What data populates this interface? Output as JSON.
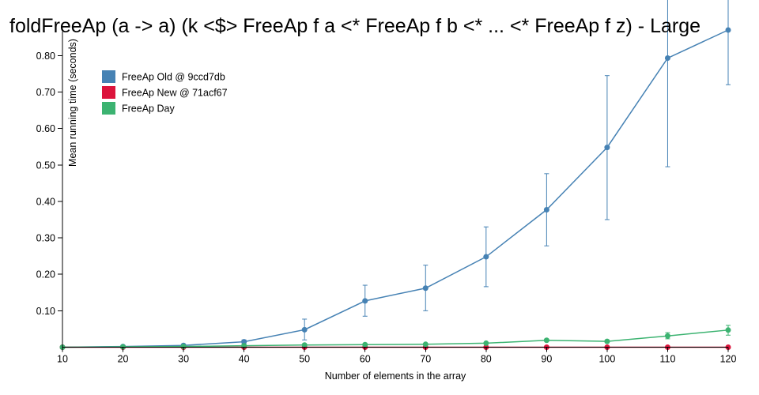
{
  "chart_data": {
    "type": "line",
    "title": "foldFreeAp (a -> a) (k <$> FreeAp f a <* FreeAp f b <* ... <* FreeAp f z) - Large",
    "xlabel": "Number of elements in the array",
    "ylabel": "Mean running time (seconds)",
    "xlim": [
      10,
      120
    ],
    "ylim": [
      0,
      0.85
    ],
    "x_ticks": [
      "10",
      "20",
      "30",
      "40",
      "50",
      "60",
      "70",
      "80",
      "90",
      "100",
      "110",
      "120"
    ],
    "y_ticks": [
      "0.10",
      "0.20",
      "0.30",
      "0.40",
      "0.50",
      "0.60",
      "0.70",
      "0.80"
    ],
    "legend_position": "top-left",
    "grid": false,
    "x": [
      10,
      20,
      30,
      40,
      50,
      60,
      70,
      80,
      90,
      100,
      110,
      120
    ],
    "series": [
      {
        "name": "FreeAp Old @ 9ccd7db",
        "color": "#4682b4",
        "values": [
          0.0,
          0.002,
          0.005,
          0.015,
          0.048,
          0.127,
          0.162,
          0.248,
          0.377,
          0.548,
          0.793,
          0.87
        ],
        "err_low": [
          0.0,
          0.001,
          0.003,
          0.01,
          0.02,
          0.085,
          0.1,
          0.166,
          0.278,
          0.35,
          0.495,
          0.72
        ],
        "err_high": [
          0.0,
          0.003,
          0.008,
          0.02,
          0.077,
          0.17,
          0.225,
          0.33,
          0.476,
          0.745,
          1.0,
          1.0
        ]
      },
      {
        "name": "FreeAp New @ 71acf67",
        "color": "#dc143c",
        "values": [
          0.0,
          0.0,
          0.0,
          0.0,
          0.0,
          0.0,
          0.0,
          0.0,
          0.0,
          0.0,
          0.0,
          0.0
        ],
        "err_low": [
          0.0,
          0.0,
          0.0,
          0.0,
          0.0,
          0.0,
          0.0,
          0.0,
          0.0,
          0.0,
          0.0,
          0.0
        ],
        "err_high": [
          0.0,
          0.0,
          0.0,
          0.0,
          0.0,
          0.0,
          0.0,
          0.0,
          0.0,
          0.0,
          0.0,
          0.0
        ]
      },
      {
        "name": "FreeAp Day",
        "color": "#3cb371",
        "values": [
          0.0,
          0.001,
          0.002,
          0.004,
          0.006,
          0.007,
          0.008,
          0.011,
          0.019,
          0.016,
          0.031,
          0.047
        ],
        "err_low": [
          0.0,
          0.0,
          0.001,
          0.003,
          0.005,
          0.006,
          0.007,
          0.009,
          0.016,
          0.013,
          0.023,
          0.033
        ],
        "err_high": [
          0.0,
          0.002,
          0.003,
          0.005,
          0.007,
          0.008,
          0.009,
          0.013,
          0.022,
          0.019,
          0.04,
          0.06
        ]
      }
    ]
  }
}
